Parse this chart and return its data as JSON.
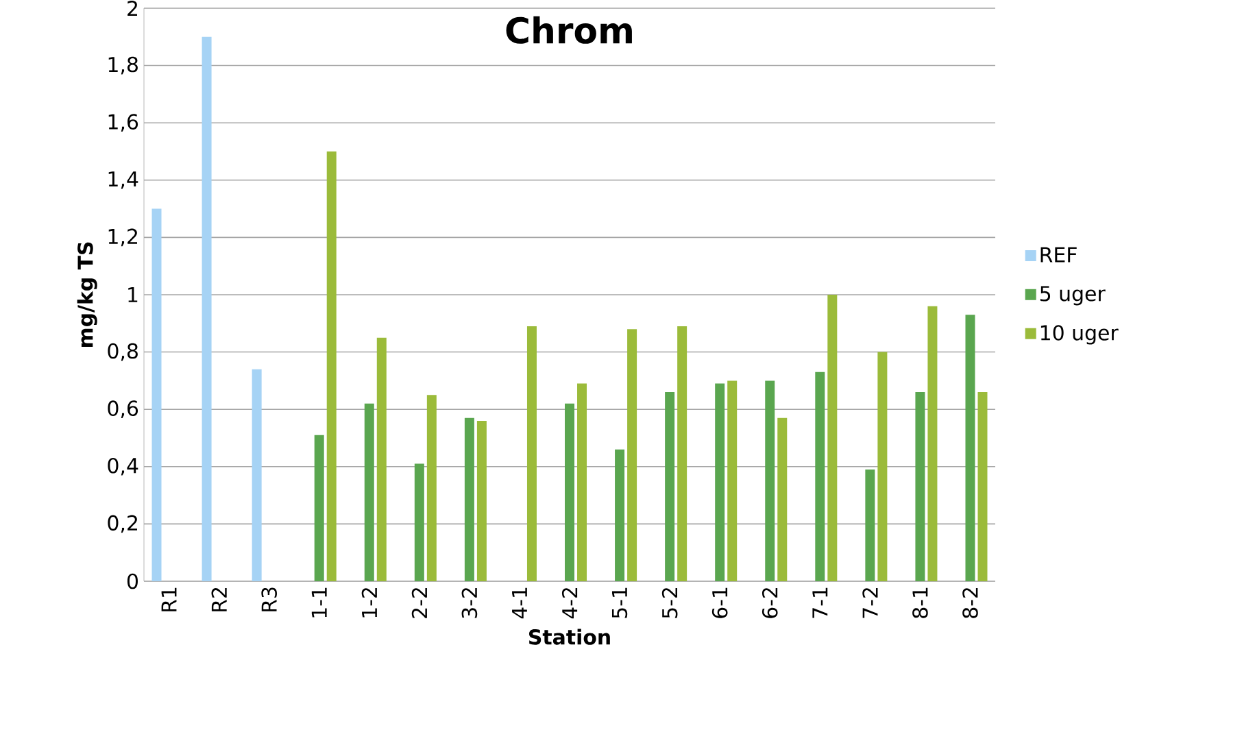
{
  "chart_data": {
    "type": "bar",
    "title": "Chrom",
    "xlabel": "Station",
    "ylabel": "mg/kg TS",
    "categories": [
      "R1",
      "R2",
      "R3",
      "1-1",
      "1-2",
      "2-2",
      "3-2",
      "4-1",
      "4-2",
      "5-1",
      "5-2",
      "6-1",
      "6-2",
      "7-1",
      "7-2",
      "8-1",
      "8-2"
    ],
    "series": [
      {
        "name": "REF",
        "color": "#a6d3f5",
        "values": [
          1.3,
          1.9,
          0.74,
          null,
          null,
          null,
          null,
          null,
          null,
          null,
          null,
          null,
          null,
          null,
          null,
          null,
          null
        ]
      },
      {
        "name": "5 uger",
        "color": "#5aa64f",
        "values": [
          null,
          null,
          null,
          0.51,
          0.62,
          0.41,
          0.57,
          null,
          0.62,
          0.46,
          0.66,
          0.69,
          0.7,
          0.73,
          0.39,
          0.66,
          0.93
        ]
      },
      {
        "name": "10 uger",
        "color": "#9bbb3a",
        "values": [
          null,
          null,
          null,
          1.5,
          0.85,
          0.65,
          0.56,
          0.89,
          0.69,
          0.88,
          0.89,
          0.7,
          0.57,
          1.0,
          0.8,
          0.96,
          0.66
        ]
      }
    ],
    "ylim": [
      0,
      2
    ],
    "yticks": [
      0,
      {
        "value": 0.2,
        "label": "0,2"
      },
      {
        "value": 0.4,
        "label": "0,4"
      },
      {
        "value": 0.6,
        "label": "0,6"
      },
      {
        "value": 0.8,
        "label": "0,8"
      },
      1,
      {
        "value": 1.2,
        "label": "1,2"
      },
      {
        "value": 1.4,
        "label": "1,4"
      },
      {
        "value": 1.6,
        "label": "1,6"
      },
      {
        "value": 1.8,
        "label": "1,8"
      },
      2
    ],
    "grid": "y",
    "legend": "right"
  }
}
